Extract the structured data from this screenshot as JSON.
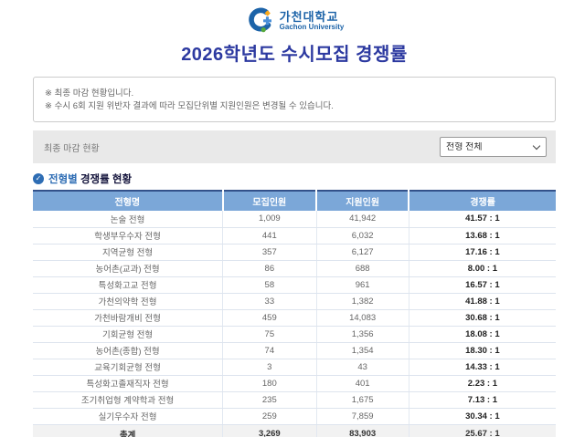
{
  "brand": {
    "university_kr": "가천대학교",
    "university_en": "Gachon University",
    "logo_icon": "gachon-g-logo",
    "logo_colors": {
      "blue": "#1c63a8",
      "orange": "#f7a81d",
      "green": "#56a93c"
    }
  },
  "page_title": "2026학년도 수시모집 경쟁률",
  "notice": {
    "lines": [
      "※ 최종 마감 현황입니다.",
      "※ 수시 6회 지원 위반자 결과에 따라 모집단위별 지원인원은 변경될 수 있습니다."
    ]
  },
  "filter_bar": {
    "label": "최종 마감 현황",
    "select": {
      "value": "전형 전체",
      "icon": "chevron-down-icon"
    }
  },
  "section": {
    "icon": "check-circle-icon",
    "check_glyph": "✓",
    "title_highlight": "전형별",
    "title_rest": " 경쟁률 현황"
  },
  "table": {
    "headers": [
      "전형명",
      "모집인원",
      "지원인원",
      "경쟁률"
    ],
    "rows": [
      {
        "name": "논술 전형",
        "quota": "1,009",
        "applicants": "41,942",
        "rate": "41.57 : 1"
      },
      {
        "name": "학생부우수자 전형",
        "quota": "441",
        "applicants": "6,032",
        "rate": "13.68 : 1"
      },
      {
        "name": "지역균형 전형",
        "quota": "357",
        "applicants": "6,127",
        "rate": "17.16 : 1"
      },
      {
        "name": "농어촌(교과) 전형",
        "quota": "86",
        "applicants": "688",
        "rate": "8.00 : 1"
      },
      {
        "name": "특성화고교 전형",
        "quota": "58",
        "applicants": "961",
        "rate": "16.57 : 1"
      },
      {
        "name": "가천의약학 전형",
        "quota": "33",
        "applicants": "1,382",
        "rate": "41.88 : 1"
      },
      {
        "name": "가천바람개비 전형",
        "quota": "459",
        "applicants": "14,083",
        "rate": "30.68 : 1"
      },
      {
        "name": "기회균형 전형",
        "quota": "75",
        "applicants": "1,356",
        "rate": "18.08 : 1"
      },
      {
        "name": "농어촌(종합) 전형",
        "quota": "74",
        "applicants": "1,354",
        "rate": "18.30 : 1"
      },
      {
        "name": "교육기회균형 전형",
        "quota": "3",
        "applicants": "43",
        "rate": "14.33 : 1"
      },
      {
        "name": "특성화고졸재직자 전형",
        "quota": "180",
        "applicants": "401",
        "rate": "2.23 : 1"
      },
      {
        "name": "조기취업형 계약학과 전형",
        "quota": "235",
        "applicants": "1,675",
        "rate": "7.13 : 1"
      },
      {
        "name": "실기우수자 전형",
        "quota": "259",
        "applicants": "7,859",
        "rate": "30.34 : 1"
      }
    ],
    "total": {
      "label": "총계",
      "quota": "3,269",
      "applicants": "83,903",
      "rate": "25.67 : 1"
    }
  },
  "colors": {
    "title_blue": "#2c39a0",
    "brand_blue": "#1c63a8",
    "table_header_bg": "#7ba7d8",
    "table_top_border": "#33518a",
    "filter_bar_bg": "#e9e9e9",
    "total_row_bg": "#f2f2f2"
  }
}
